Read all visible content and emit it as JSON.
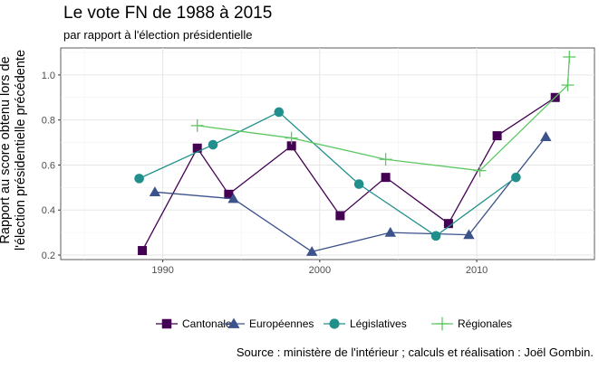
{
  "chart_data": {
    "type": "line",
    "title": "Le vote FN de 1988 à 2015",
    "subtitle": "par rapport à l'élection présidentielle",
    "xlabel": "",
    "ylabel_lines": [
      "Rapport au score obtenu lors de",
      "l'élection présidentielle précédente"
    ],
    "xlim": [
      1983.5,
      2017.5
    ],
    "ylim": [
      0.18,
      1.12
    ],
    "x_ticks": [
      1990,
      2000,
      2010
    ],
    "x_tick_labels": [
      "1990",
      "2000",
      "2010"
    ],
    "y_ticks": [
      0.2,
      0.4,
      0.6,
      0.8,
      1.0
    ],
    "y_tick_labels": [
      "0.2",
      "0.4",
      "0.6",
      "0.8",
      "1.0"
    ],
    "grid": true,
    "legend_position": "bottom",
    "series": [
      {
        "name": "Cantonales",
        "marker": "square",
        "color": "#440154",
        "x": [
          1988.7,
          1992.2,
          1994.2,
          1998.2,
          2001.3,
          2004.2,
          2008.2,
          2011.3,
          2015.0
        ],
        "y": [
          0.22,
          0.675,
          0.47,
          0.685,
          0.375,
          0.545,
          0.34,
          0.73,
          0.9
        ]
      },
      {
        "name": "Européennes",
        "marker": "triangle",
        "color": "#3b528b",
        "x": [
          1989.5,
          1994.5,
          1999.5,
          2004.5,
          2009.5,
          2014.4
        ],
        "y": [
          0.48,
          0.45,
          0.215,
          0.3,
          0.29,
          0.725
        ]
      },
      {
        "name": "Législatives",
        "marker": "circle",
        "color": "#21908c",
        "x": [
          1988.5,
          1993.2,
          1997.4,
          2002.5,
          2007.4,
          2012.5
        ],
        "y": [
          0.54,
          0.69,
          0.835,
          0.515,
          0.285,
          0.545
        ]
      },
      {
        "name": "Régionales",
        "marker": "plus",
        "color": "#5dc863",
        "x": [
          1992.2,
          1998.2,
          2004.2,
          2010.2,
          2015.8,
          2015.9
        ],
        "y": [
          0.775,
          0.72,
          0.625,
          0.575,
          0.955,
          1.08
        ]
      }
    ]
  },
  "caption": "Source : ministère de l'intérieur ; calculs et réalisation : Joël Gombin."
}
